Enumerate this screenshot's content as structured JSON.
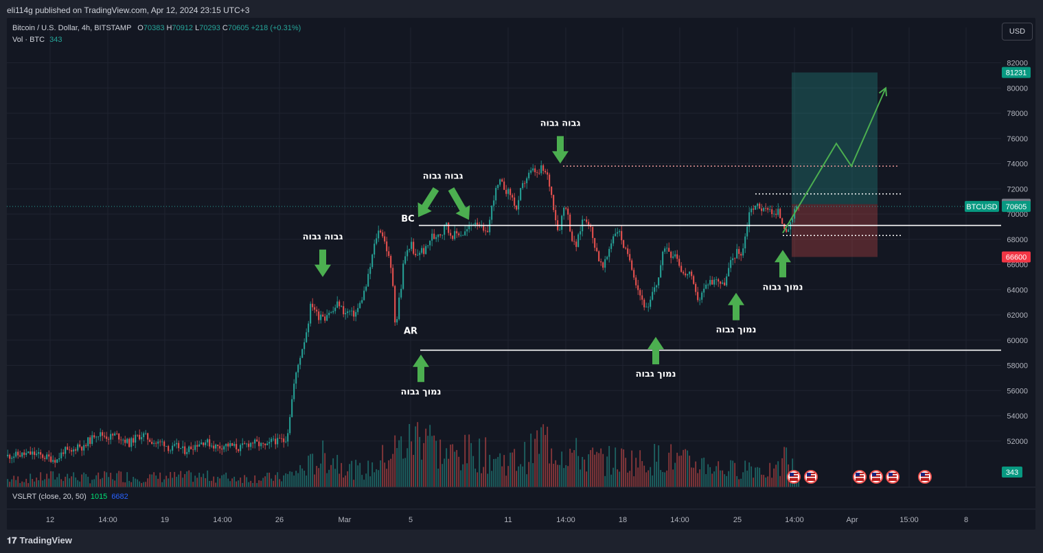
{
  "publisher_line": "eli114g published on TradingView.com, Apr 12, 2024 23:15 UTC+3",
  "legend": {
    "symbol": "Bitcoin / U.S. Dollar, 4h, BITSTAMP",
    "o_label": "O",
    "o": "70383",
    "h_label": "H",
    "h": "70912",
    "l_label": "L",
    "l": "70293",
    "c_label": "C",
    "c": "70605",
    "change": "+218 (+0.31%)",
    "vol_label": "Vol · BTC",
    "vol": "343"
  },
  "currency_button": "USD",
  "indicator": {
    "name": "VSLRT (close, 20, 50)",
    "v1": "1015",
    "v2": "6682"
  },
  "footer_brand": "TradingView",
  "colors": {
    "background": "#131722",
    "up": "#26a69a",
    "down": "#ef5350",
    "annotation": "#4caf50",
    "level_line": "#ffffff"
  },
  "chart_data": {
    "type": "candlestick",
    "symbol": "BTCUSD",
    "timeframe": "4h",
    "y_range": [
      50000,
      83000
    ],
    "y_ticks": [
      82000,
      80000,
      78000,
      76000,
      74000,
      72000,
      70000,
      68000,
      66000,
      64000,
      62000,
      60000,
      58000,
      56000,
      54000,
      52000
    ],
    "x_ticks": [
      "12",
      "14:00",
      "19",
      "14:00",
      "26",
      "Mar",
      "5",
      "11",
      "14:00",
      "18",
      "14:00",
      "25",
      "14:00",
      "Apr",
      "15:00",
      "8"
    ],
    "price_path": [
      [
        0,
        50800
      ],
      [
        40,
        51000
      ],
      [
        60,
        50700
      ],
      [
        75,
        50500
      ],
      [
        85,
        51300
      ],
      [
        95,
        51000
      ],
      [
        105,
        51700
      ],
      [
        115,
        51400
      ],
      [
        120,
        52000
      ],
      [
        125,
        52100
      ],
      [
        130,
        52600
      ],
      [
        140,
        52500
      ],
      [
        150,
        52300
      ],
      [
        160,
        52500
      ],
      [
        170,
        52200
      ],
      [
        180,
        51800
      ],
      [
        190,
        52300
      ],
      [
        200,
        52500
      ],
      [
        210,
        52100
      ],
      [
        220,
        51800
      ],
      [
        230,
        51900
      ],
      [
        240,
        51300
      ],
      [
        250,
        51600
      ],
      [
        260,
        51200
      ],
      [
        270,
        51500
      ],
      [
        280,
        51800
      ],
      [
        290,
        52000
      ],
      [
        300,
        51700
      ],
      [
        310,
        51500
      ],
      [
        320,
        51700
      ],
      [
        330,
        51600
      ],
      [
        340,
        51400
      ],
      [
        350,
        51700
      ],
      [
        360,
        51900
      ],
      [
        370,
        51700
      ],
      [
        380,
        51500
      ],
      [
        385,
        51800
      ],
      [
        390,
        52200
      ],
      [
        395,
        51900
      ],
      [
        400,
        52100
      ],
      [
        405,
        52000
      ],
      [
        410,
        52400
      ],
      [
        415,
        54500
      ],
      [
        420,
        56500
      ],
      [
        425,
        57800
      ],
      [
        430,
        59000
      ],
      [
        435,
        60000
      ],
      [
        440,
        61200
      ],
      [
        445,
        63000
      ],
      [
        450,
        62500
      ],
      [
        455,
        61800
      ],
      [
        460,
        62200
      ],
      [
        465,
        61800
      ],
      [
        470,
        62300
      ],
      [
        475,
        62100
      ],
      [
        480,
        62600
      ],
      [
        485,
        63000
      ],
      [
        490,
        62400
      ],
      [
        495,
        62100
      ],
      [
        500,
        62300
      ],
      [
        505,
        62000
      ],
      [
        510,
        62200
      ],
      [
        515,
        62700
      ],
      [
        520,
        63500
      ],
      [
        525,
        64300
      ],
      [
        530,
        65500
      ],
      [
        535,
        67000
      ],
      [
        540,
        68200
      ],
      [
        545,
        68900
      ],
      [
        550,
        68200
      ],
      [
        555,
        67200
      ],
      [
        560,
        66000
      ],
      [
        565,
        64000
      ],
      [
        568,
        60500
      ],
      [
        572,
        63000
      ],
      [
        576,
        64200
      ],
      [
        580,
        66500
      ],
      [
        585,
        67000
      ],
      [
        590,
        67800
      ],
      [
        595,
        66500
      ],
      [
        600,
        66800
      ],
      [
        605,
        67200
      ],
      [
        610,
        67000
      ],
      [
        615,
        67500
      ],
      [
        620,
        68300
      ],
      [
        625,
        68100
      ],
      [
        630,
        68600
      ],
      [
        635,
        68300
      ],
      [
        640,
        69500
      ],
      [
        645,
        68600
      ],
      [
        650,
        68300
      ],
      [
        655,
        68400
      ],
      [
        660,
        68500
      ],
      [
        665,
        68400
      ],
      [
        670,
        68600
      ],
      [
        675,
        68900
      ],
      [
        680,
        69300
      ],
      [
        685,
        69500
      ],
      [
        690,
        69200
      ],
      [
        695,
        68600
      ],
      [
        700,
        68300
      ],
      [
        705,
        69500
      ],
      [
        710,
        71200
      ],
      [
        715,
        72000
      ],
      [
        720,
        72500
      ],
      [
        725,
        72200
      ],
      [
        730,
        71800
      ],
      [
        735,
        71600
      ],
      [
        740,
        71000
      ],
      [
        745,
        70200
      ],
      [
        750,
        71800
      ],
      [
        755,
        72500
      ],
      [
        760,
        73000
      ],
      [
        765,
        73300
      ],
      [
        770,
        73500
      ],
      [
        775,
        73000
      ],
      [
        780,
        73600
      ],
      [
        785,
        73300
      ],
      [
        790,
        72900
      ],
      [
        795,
        71500
      ],
      [
        800,
        70000
      ],
      [
        805,
        68500
      ],
      [
        810,
        69800
      ],
      [
        815,
        71000
      ],
      [
        820,
        69500
      ],
      [
        825,
        68000
      ],
      [
        830,
        67300
      ],
      [
        835,
        68300
      ],
      [
        840,
        69500
      ],
      [
        845,
        69700
      ],
      [
        850,
        69300
      ],
      [
        855,
        68000
      ],
      [
        860,
        67300
      ],
      [
        865,
        66200
      ],
      [
        870,
        65700
      ],
      [
        875,
        66400
      ],
      [
        880,
        67500
      ],
      [
        885,
        68300
      ],
      [
        890,
        68800
      ],
      [
        895,
        68400
      ],
      [
        900,
        67500
      ],
      [
        905,
        66700
      ],
      [
        910,
        66300
      ],
      [
        915,
        65200
      ],
      [
        920,
        64200
      ],
      [
        925,
        63500
      ],
      [
        930,
        62800
      ],
      [
        935,
        62200
      ],
      [
        940,
        63300
      ],
      [
        945,
        64200
      ],
      [
        950,
        64700
      ],
      [
        955,
        66200
      ],
      [
        960,
        67500
      ],
      [
        965,
        67300
      ],
      [
        970,
        66700
      ],
      [
        975,
        67000
      ],
      [
        980,
        66200
      ],
      [
        985,
        65500
      ],
      [
        990,
        65000
      ],
      [
        995,
        65600
      ],
      [
        1000,
        64600
      ],
      [
        1005,
        63600
      ],
      [
        1010,
        63200
      ],
      [
        1015,
        63800
      ],
      [
        1020,
        64300
      ],
      [
        1025,
        64800
      ],
      [
        1030,
        64500
      ],
      [
        1035,
        65000
      ],
      [
        1040,
        64600
      ],
      [
        1045,
        64300
      ],
      [
        1050,
        65000
      ],
      [
        1055,
        66000
      ],
      [
        1060,
        66600
      ],
      [
        1065,
        67000
      ],
      [
        1070,
        66800
      ],
      [
        1075,
        67500
      ],
      [
        1080,
        69200
      ],
      [
        1085,
        70700
      ],
      [
        1090,
        70300
      ],
      [
        1095,
        70800
      ],
      [
        1100,
        70500
      ],
      [
        1105,
        70200
      ],
      [
        1110,
        70600
      ],
      [
        1115,
        70300
      ],
      [
        1120,
        69800
      ],
      [
        1125,
        70200
      ],
      [
        1130,
        69500
      ],
      [
        1135,
        69000
      ],
      [
        1140,
        68500
      ],
      [
        1145,
        69500
      ],
      [
        1150,
        70300
      ],
      [
        1155,
        70605
      ]
    ],
    "volume_path": [
      [
        0,
        700
      ],
      [
        40,
        820
      ],
      [
        80,
        1100
      ],
      [
        120,
        800
      ],
      [
        160,
        1050
      ],
      [
        200,
        900
      ],
      [
        240,
        950
      ],
      [
        280,
        1000
      ],
      [
        320,
        900
      ],
      [
        360,
        850
      ],
      [
        400,
        900
      ],
      [
        420,
        1400
      ],
      [
        440,
        2000
      ],
      [
        460,
        2800
      ],
      [
        480,
        2500
      ],
      [
        500,
        1700
      ],
      [
        520,
        1400
      ],
      [
        540,
        2200
      ],
      [
        560,
        3400
      ],
      [
        580,
        3800
      ],
      [
        600,
        4900
      ],
      [
        614,
        6200
      ],
      [
        620,
        3600
      ],
      [
        640,
        2900
      ],
      [
        660,
        3000
      ],
      [
        680,
        3300
      ],
      [
        700,
        2800
      ],
      [
        720,
        2500
      ],
      [
        740,
        2400
      ],
      [
        760,
        3000
      ],
      [
        780,
        4500
      ],
      [
        800,
        3400
      ],
      [
        820,
        3200
      ],
      [
        840,
        2600
      ],
      [
        860,
        2500
      ],
      [
        880,
        2400
      ],
      [
        900,
        2600
      ],
      [
        920,
        2300
      ],
      [
        940,
        2600
      ],
      [
        960,
        2800
      ],
      [
        980,
        2300
      ],
      [
        1000,
        2200
      ],
      [
        1020,
        2100
      ],
      [
        1040,
        1700
      ],
      [
        1060,
        1600
      ],
      [
        1080,
        2000
      ],
      [
        1100,
        1600
      ],
      [
        1120,
        1300
      ],
      [
        1134,
        2900
      ],
      [
        1150,
        1000
      ]
    ],
    "volume_max": 7000,
    "horizontal_levels": [
      {
        "price": 69100,
        "from_x": 610,
        "to_x": 1458,
        "style": "solid"
      },
      {
        "price": 59200,
        "from_x": 612,
        "to_x": 1458,
        "style": "solid"
      },
      {
        "price": 73800,
        "from_x": 820,
        "to_x": 1310,
        "style": "dotted-red"
      },
      {
        "price": 71600,
        "from_x": 1100,
        "to_x": 1315,
        "style": "dotted-white"
      },
      {
        "price": 68300,
        "from_x": 1140,
        "to_x": 1315,
        "style": "dotted-white"
      }
    ],
    "position": {
      "entry": 70781,
      "target": 81231,
      "stop": 66600,
      "from_x": 1153,
      "to_x": 1278
    },
    "projection_path": [
      [
        1140,
        68500
      ],
      [
        1218,
        75600
      ],
      [
        1240,
        73800
      ],
      [
        1290,
        80000
      ]
    ],
    "price_scale_labels": {
      "target": "81231",
      "entry": "70781",
      "current_symbol": "BTCUSD",
      "current": "70605",
      "stop": "66600",
      "volume": "343"
    },
    "annotations": [
      {
        "text": "גבוה גבוה",
        "x": 470,
        "y_price": 68000,
        "arrow": "down"
      },
      {
        "text": "גבוה גבוה",
        "x": 645,
        "y_price": 72800,
        "arrow": "down-both"
      },
      {
        "text": "גבוה גבוה",
        "x": 816,
        "y_price": 77000,
        "arrow": "down"
      },
      {
        "text": "BC",
        "x": 594,
        "y_price": 69400,
        "arrow": "none"
      },
      {
        "text": "AR",
        "x": 598,
        "y_price": 60500,
        "arrow": "none"
      },
      {
        "text": "נמוך גבוה",
        "x": 613,
        "y_price": 55700,
        "arrow": "up"
      },
      {
        "text": "נמוך גבוה",
        "x": 955,
        "y_price": 57100,
        "arrow": "up"
      },
      {
        "text": "נמוך גבוה",
        "x": 1072,
        "y_price": 60600,
        "arrow": "up"
      },
      {
        "text": "נמוך גבוה",
        "x": 1140,
        "y_price": 64000,
        "arrow": "up"
      }
    ]
  }
}
